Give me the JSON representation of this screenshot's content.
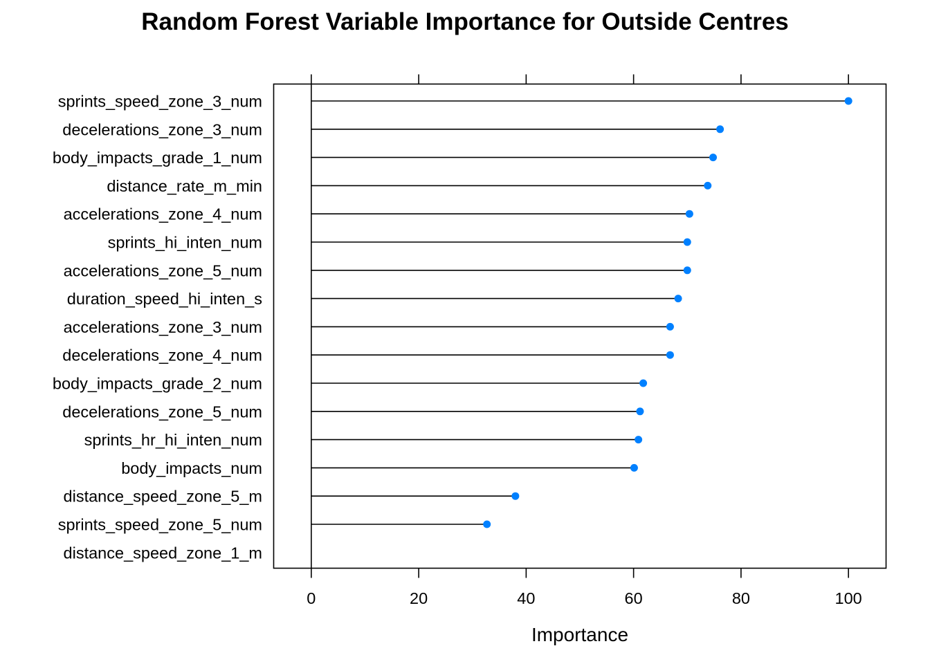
{
  "chart_data": {
    "type": "dotplot",
    "title": "Random Forest Variable Importance for Outside Centres",
    "xlabel": "Importance",
    "xlim": [
      -7,
      107
    ],
    "xticks": [
      0,
      20,
      40,
      60,
      80,
      100
    ],
    "grid": false,
    "point_color": "#0080ff",
    "categories": [
      "sprints_speed_zone_3_num",
      "decelerations_zone_3_num",
      "body_impacts_grade_1_num",
      "distance_rate_m_min",
      "accelerations_zone_4_num",
      "sprints_hi_inten_num",
      "accelerations_zone_5_num",
      "duration_speed_hi_inten_s",
      "accelerations_zone_3_num",
      "decelerations_zone_4_num",
      "body_impacts_grade_2_num",
      "decelerations_zone_5_num",
      "sprints_hr_hi_inten_num",
      "body_impacts_num",
      "distance_speed_zone_5_m",
      "sprints_speed_zone_5_num",
      "distance_speed_zone_1_m"
    ],
    "values": [
      100,
      76.1,
      74.8,
      73.8,
      70.4,
      70.0,
      70.0,
      68.3,
      66.8,
      66.8,
      61.8,
      61.2,
      60.9,
      60.1,
      38.0,
      32.7,
      0
    ]
  }
}
